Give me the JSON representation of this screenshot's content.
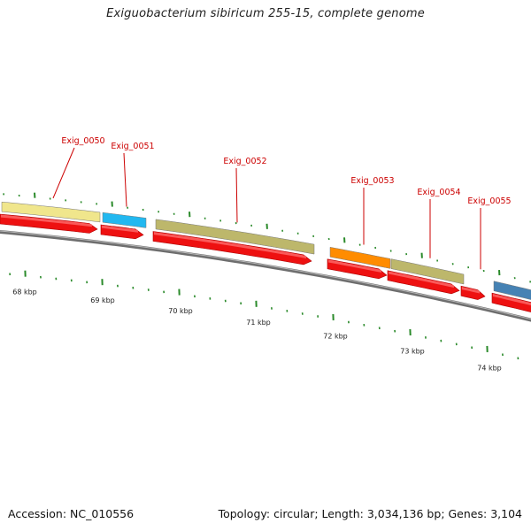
{
  "title": "Exiguobacterium sibiricum 255-15, complete genome",
  "footer": {
    "accession_label": "Accession:",
    "accession": "NC_010556",
    "topology_label": "Topology:",
    "topology": "circular",
    "length_label": "Length:",
    "length": "3,034,136 bp",
    "genes_label": "Genes:",
    "genes": "3,104"
  },
  "colors": {
    "cds_strand": "#ee1111",
    "backbone": "#777777",
    "tick": "#2a8a2a",
    "label": "#cc0000",
    "kbp_label": "#222222"
  },
  "chart_data": {
    "type": "genome_map",
    "kbp_labels": [
      "68 kbp",
      "69 kbp",
      "70 kbp",
      "71 kbp",
      "72 kbp",
      "73 kbp",
      "74 kbp"
    ],
    "genes": [
      {
        "label": "Exig_0050",
        "color": "#f0e68c"
      },
      {
        "label": "Exig_0051",
        "color": "#22b8f0"
      },
      {
        "label": "Exig_0052",
        "color": "#bdb76b"
      },
      {
        "label": "Exig_0053",
        "color": "#ff8c00"
      },
      {
        "label": "Exig_0054",
        "color": "#bdb76b"
      },
      {
        "label": "Exig_0055",
        "color": "#4682b4"
      }
    ]
  }
}
